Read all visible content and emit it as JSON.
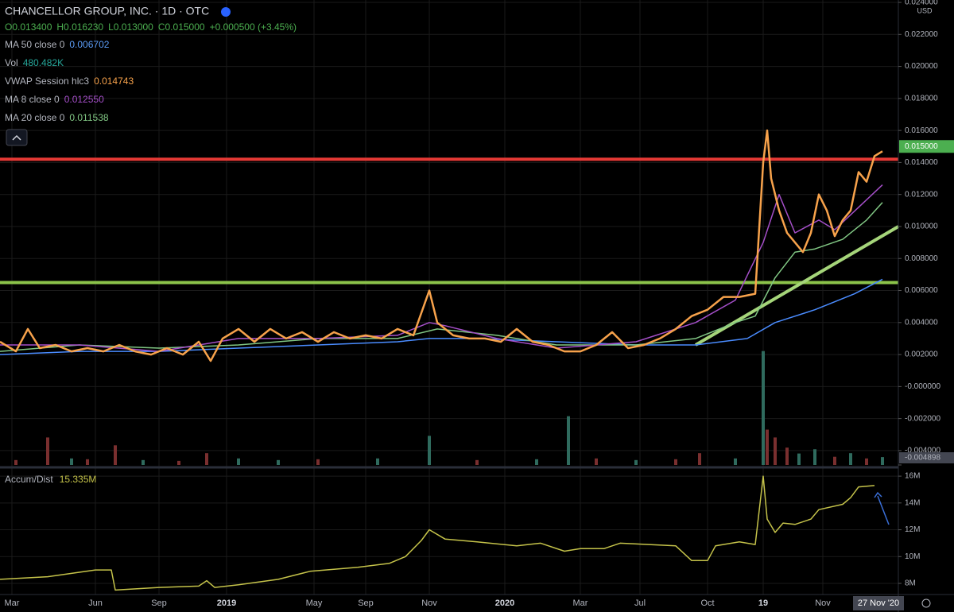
{
  "title": "CHANCELLOR GROUP, INC. · 1D · OTC",
  "ohlc": [
    "O0.013400",
    "H0.016230",
    "L0.013000",
    "C0.015000",
    "+0.000500 (+3.45%)"
  ],
  "legend": [
    {
      "label": "MA 50 close 0",
      "value": "0.006702",
      "color": "#5b9cf6"
    },
    {
      "label": "Vol",
      "value": "480.482K",
      "color": "#26a69a"
    },
    {
      "label": "VWAP Session hlc3",
      "value": "0.014743",
      "color": "#f7a24b"
    },
    {
      "label": "MA 8 close 0",
      "value": "0.012550",
      "color": "#a54fc9"
    },
    {
      "label": "MA 20 close 0",
      "value": "0.011538",
      "color": "#81c784"
    }
  ],
  "currency": "USD",
  "chart_data": [
    {
      "type": "line",
      "xlim": [
        0,
        226
      ],
      "ylim": [
        -0.004898,
        0.02415
      ],
      "xticks": [
        {
          "value": 3,
          "label": "Mar"
        },
        {
          "value": 24,
          "label": "Jun"
        },
        {
          "value": 40,
          "label": "Sep"
        },
        {
          "value": 57,
          "label": "2019"
        },
        {
          "value": 79,
          "label": "May"
        },
        {
          "value": 92,
          "label": "Sep"
        },
        {
          "value": 108,
          "label": "Nov"
        },
        {
          "value": 127,
          "label": "2020"
        },
        {
          "value": 146,
          "label": "Mar"
        },
        {
          "value": 161,
          "label": "Jul"
        },
        {
          "value": 178,
          "label": "Oct"
        },
        {
          "value": 192,
          "label": "19"
        },
        {
          "value": 207,
          "label": "Nov"
        }
      ],
      "cursor": {
        "value": 221,
        "label": "27 Nov '20"
      },
      "yticks": [
        {
          "value": 0.024,
          "label": "0.024000"
        },
        {
          "value": 0.022,
          "label": "0.022000"
        },
        {
          "value": 0.02,
          "label": "0.020000"
        },
        {
          "value": 0.018,
          "label": "0.018000"
        },
        {
          "value": 0.016,
          "label": "0.016000"
        },
        {
          "value": 0.014,
          "label": "0.014000"
        },
        {
          "value": 0.012,
          "label": "0.012000"
        },
        {
          "value": 0.01,
          "label": "0.010000"
        },
        {
          "value": 0.008,
          "label": "0.008000"
        },
        {
          "value": 0.006,
          "label": "0.006000"
        },
        {
          "value": 0.004,
          "label": "0.004000"
        },
        {
          "value": 0.002,
          "label": "0.002000"
        },
        {
          "value": 0,
          "label": "-0.000000"
        },
        {
          "value": -0.002,
          "label": "-0.002000"
        },
        {
          "value": -0.004,
          "label": "-0.004000"
        },
        {
          "value": -0.004898,
          "label": "-0.004898"
        }
      ],
      "last_price": {
        "value": 0.015,
        "label": "0.015000"
      },
      "levels": [
        {
          "color": "#e53935",
          "value": 0.0142
        },
        {
          "color": "#8bc34a",
          "value": 0.0065
        }
      ],
      "series": [
        {
          "name": "Trend",
          "color": "#a5d57a",
          "x": [
            175,
            226
          ],
          "values": [
            0.0026,
            0.01
          ]
        },
        {
          "name": "MA 50 close 0",
          "color": "#4a8cff",
          "x": [
            0,
            20,
            40,
            60,
            80,
            100,
            108,
            120,
            140,
            160,
            175,
            188,
            195,
            205,
            215,
            222
          ],
          "values": [
            0.002,
            0.0022,
            0.0022,
            0.0024,
            0.0026,
            0.0028,
            0.003,
            0.003,
            0.0028,
            0.0026,
            0.0026,
            0.003,
            0.004,
            0.0048,
            0.0058,
            0.0067
          ]
        },
        {
          "name": "MA 20 close 0",
          "color": "#81c784",
          "x": [
            0,
            20,
            40,
            60,
            80,
            100,
            110,
            125,
            140,
            160,
            175,
            185,
            190,
            195,
            200,
            205,
            212,
            218,
            222
          ],
          "values": [
            0.0022,
            0.0026,
            0.0024,
            0.0026,
            0.003,
            0.003,
            0.0036,
            0.0032,
            0.0026,
            0.0026,
            0.003,
            0.004,
            0.0044,
            0.0068,
            0.0084,
            0.0086,
            0.0092,
            0.0104,
            0.0115
          ]
        },
        {
          "name": "MA 8 close 0",
          "color": "#a54fc9",
          "x": [
            0,
            20,
            40,
            60,
            80,
            100,
            108,
            112,
            125,
            140,
            160,
            175,
            185,
            192,
            196,
            200,
            206,
            210,
            216,
            222
          ],
          "values": [
            0.0026,
            0.0026,
            0.0022,
            0.003,
            0.003,
            0.0032,
            0.004,
            0.0038,
            0.003,
            0.0024,
            0.0028,
            0.004,
            0.0054,
            0.009,
            0.012,
            0.0096,
            0.0104,
            0.0098,
            0.0112,
            0.0126
          ]
        },
        {
          "name": "VWAP Session hlc3",
          "color": "#f7a24b",
          "x": [
            0,
            4,
            7,
            10,
            14,
            18,
            22,
            26,
            30,
            34,
            38,
            42,
            46,
            50,
            53,
            56,
            60,
            64,
            68,
            72,
            76,
            80,
            84,
            88,
            92,
            96,
            100,
            104,
            108,
            110,
            114,
            118,
            122,
            126,
            130,
            134,
            138,
            142,
            146,
            150,
            154,
            158,
            162,
            166,
            170,
            174,
            178,
            182,
            186,
            190,
            192,
            193,
            194,
            196,
            198,
            200,
            202,
            204,
            206,
            208,
            210,
            212,
            214,
            216,
            218,
            220,
            222
          ],
          "values": [
            0.0028,
            0.0022,
            0.0036,
            0.0024,
            0.0026,
            0.0022,
            0.0024,
            0.0022,
            0.0026,
            0.0022,
            0.002,
            0.0024,
            0.002,
            0.0028,
            0.0016,
            0.003,
            0.0036,
            0.0028,
            0.0036,
            0.003,
            0.0034,
            0.0028,
            0.0034,
            0.003,
            0.0032,
            0.003,
            0.0036,
            0.0032,
            0.006,
            0.004,
            0.0032,
            0.003,
            0.003,
            0.0028,
            0.0036,
            0.0028,
            0.0026,
            0.0022,
            0.0022,
            0.0026,
            0.0034,
            0.0024,
            0.0026,
            0.003,
            0.0036,
            0.0044,
            0.0048,
            0.0056,
            0.0056,
            0.0058,
            0.014,
            0.016,
            0.013,
            0.011,
            0.0096,
            0.009,
            0.0084,
            0.0096,
            0.012,
            0.011,
            0.0094,
            0.0104,
            0.011,
            0.0134,
            0.0128,
            0.0144,
            0.0147
          ]
        }
      ]
    },
    {
      "type": "bar",
      "xlim": [
        0,
        226
      ],
      "ylim": [
        0,
        8500
      ],
      "x": [
        4,
        12,
        18,
        22,
        29,
        36,
        45,
        52,
        60,
        70,
        80,
        95,
        108,
        120,
        135,
        143,
        150,
        160,
        170,
        176,
        185,
        192,
        193,
        195,
        198,
        201,
        205,
        210,
        214,
        218,
        222
      ],
      "values": [
        300,
        1680,
        400,
        350,
        1200,
        300,
        250,
        720,
        400,
        300,
        350,
        400,
        1780,
        300,
        350,
        2980,
        400,
        300,
        350,
        720,
        400,
        6960,
        2160,
        1680,
        1060,
        700,
        960,
        500,
        720,
        400,
        480
      ],
      "colors": [
        "#7a2f2f",
        "#7a2f2f",
        "#2f6b5e",
        "#7a2f2f",
        "#7a2f2f",
        "#2f6b5e",
        "#7a2f2f",
        "#7a2f2f",
        "#2f6b5e",
        "#2f6b5e",
        "#7a2f2f",
        "#2f6b5e",
        "#2f6b5e",
        "#7a2f2f",
        "#2f6b5e",
        "#2f6b5e",
        "#7a2f2f",
        "#2f6b5e",
        "#7a2f2f",
        "#7a2f2f",
        "#2f6b5e",
        "#2f6b5e",
        "#7a2f2f",
        "#7a2f2f",
        "#7a2f2f",
        "#2f6b5e",
        "#2f6b5e",
        "#7a2f2f",
        "#2f6b5e",
        "#7a2f2f",
        "#2f6b5e"
      ]
    },
    {
      "type": "line",
      "title": "Accum/Dist",
      "value_label": "15.335M",
      "xlim": [
        0,
        226
      ],
      "ylim": [
        7170000,
        16420000
      ],
      "yticks": [
        {
          "value": 16000000,
          "label": "16M"
        },
        {
          "value": 14000000,
          "label": "14M"
        },
        {
          "value": 12000000,
          "label": "12M"
        },
        {
          "value": 10000000,
          "label": "10M"
        },
        {
          "value": 8000000,
          "label": "8M"
        }
      ],
      "series": [
        {
          "name": "Accum/Dist",
          "color": "#c5c34a",
          "x": [
            0,
            12,
            24,
            28,
            29,
            40,
            50,
            52,
            54,
            60,
            70,
            78,
            90,
            98,
            102,
            106,
            108,
            112,
            120,
            130,
            136,
            142,
            146,
            152,
            156,
            170,
            174,
            178,
            180,
            186,
            190,
            192,
            193,
            195,
            197,
            200,
            204,
            206,
            212,
            214,
            216,
            220
          ],
          "values": [
            8300000,
            8500000,
            9000000,
            9000000,
            7500000,
            7700000,
            7800000,
            8200000,
            7700000,
            7900000,
            8300000,
            8900000,
            9200000,
            9500000,
            10000000,
            11200000,
            12000000,
            11300000,
            11100000,
            10800000,
            11000000,
            10400000,
            10600000,
            10600000,
            11000000,
            10800000,
            9700000,
            9700000,
            10800000,
            11100000,
            10900000,
            16000000,
            12800000,
            11800000,
            12500000,
            12400000,
            12800000,
            13500000,
            13900000,
            14400000,
            15200000,
            15300000
          ]
        }
      ]
    }
  ]
}
